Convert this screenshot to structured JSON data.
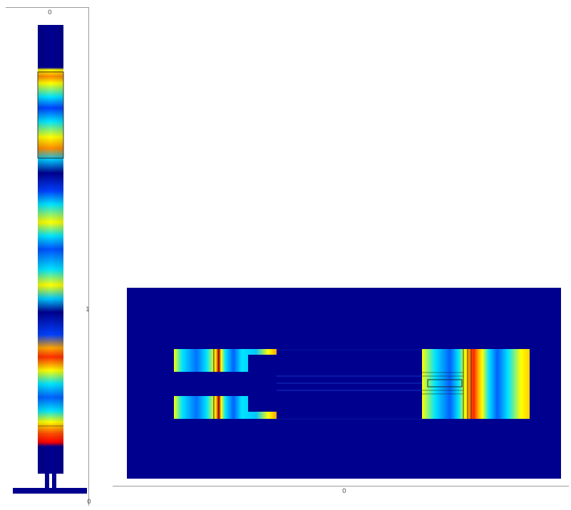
{
  "labels": {
    "left_top_tick": "0",
    "left_right_tick": "1",
    "left_bottom_tick": "0",
    "bottom_tick": "0"
  },
  "colors": {
    "background": "#ffffff",
    "field_low": "#00008f",
    "field_mid_low": "#0070ff",
    "field_mid": "#00e5ff",
    "field_mid_high": "#ffff00",
    "field_high": "#ff0000",
    "outline": "#1a1a1a"
  },
  "colormap": "jet"
}
